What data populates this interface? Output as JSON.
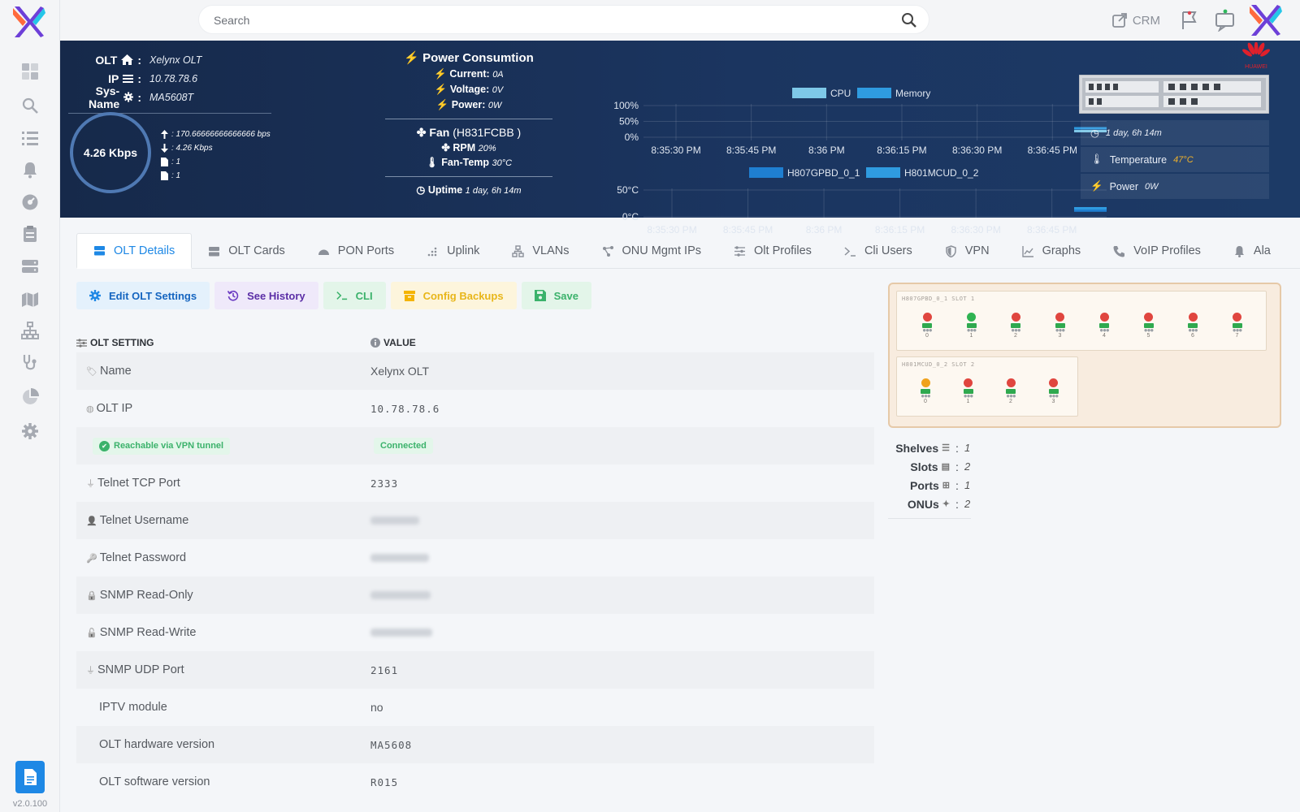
{
  "app": {
    "version": "v2.0.100"
  },
  "search": {
    "placeholder": "Search"
  },
  "topbar": {
    "crm_label": "CRM"
  },
  "olt": {
    "olt_label": "OLT",
    "olt_name": "Xelynx OLT",
    "ip_label": "IP",
    "ip": "10.78.78.6",
    "sysname_label": "Sys-Name",
    "sysname": "MA5608T",
    "gauge": "4.26 Kbps",
    "upload": ": 170.66666666666666 bps",
    "download": ": 4.26 Kbps",
    "file1": ": 1",
    "file2": ": 1"
  },
  "power": {
    "title": "Power Consumtion",
    "current_label": "Current:",
    "current": "0A",
    "voltage_label": "Voltage:",
    "voltage": "0V",
    "power_label": "Power:",
    "power": "0W",
    "fan_title": "Fan",
    "fan_model": "(H831FCBB )",
    "rpm_label": "RPM",
    "rpm": "20%",
    "fantemp_label": "Fan-Temp",
    "fantemp": "30°C",
    "uptime_label": "Uptime",
    "uptime": "1 day, 6h 14m"
  },
  "device": {
    "brand": "HUAWEI",
    "uptime": "1 day, 6h 14m",
    "temp_label": "Temperature",
    "temp": "47°C",
    "power_label": "Power",
    "power": "0W"
  },
  "chart_data": [
    {
      "type": "area",
      "series": [
        {
          "name": "CPU",
          "color": "#7ec8e8",
          "values": [
            0,
            0,
            0,
            0,
            0,
            0,
            0,
            0,
            0,
            0,
            0,
            0,
            0,
            0,
            0,
            0,
            0,
            0,
            0,
            0.1
          ]
        },
        {
          "name": "Memory",
          "color": "#2f9be0",
          "values": [
            0,
            0,
            0,
            0,
            0,
            0,
            0,
            0,
            0,
            0,
            0,
            0,
            0,
            0,
            0,
            0,
            0,
            0,
            0,
            0.15
          ]
        }
      ],
      "x_ticks": [
        "8:35:30 PM",
        "8:35:45 PM",
        "8:36 PM",
        "8:36:15 PM",
        "8:36:30 PM",
        "8:36:45 PM"
      ],
      "y_ticks": [
        "100%",
        "50%",
        "0%"
      ],
      "ylim": [
        0,
        100
      ]
    },
    {
      "type": "area",
      "series": [
        {
          "name": "H807GPBD_0_1",
          "color": "#1f7fd1",
          "values": [
            0,
            0,
            0,
            0,
            0,
            0,
            0,
            0,
            0,
            0,
            0,
            0,
            0,
            0,
            0,
            0,
            0,
            0,
            0,
            0.12
          ]
        },
        {
          "name": "H801MCUD_0_2",
          "color": "#2f9be0",
          "values": [
            0,
            0,
            0,
            0,
            0,
            0,
            0,
            0,
            0,
            0,
            0,
            0,
            0,
            0,
            0,
            0,
            0,
            0,
            0,
            0.1
          ]
        }
      ],
      "x_ticks": [
        "8:35:30 PM",
        "8:35:45 PM",
        "8:36 PM",
        "8:36:15 PM",
        "8:36:30 PM",
        "8:36:45 PM"
      ],
      "y_ticks": [
        "50°C",
        "0°C"
      ],
      "ylim": [
        0,
        50
      ]
    }
  ],
  "tabs": [
    {
      "label": "OLT Details",
      "icon": "server-icon",
      "active": true
    },
    {
      "label": "OLT Cards",
      "icon": "cards-icon"
    },
    {
      "label": "PON Ports",
      "icon": "pon-icon"
    },
    {
      "label": "Uplink",
      "icon": "uplink-icon"
    },
    {
      "label": "VLANs",
      "icon": "vlan-icon"
    },
    {
      "label": "ONU Mgmt IPs",
      "icon": "network-icon"
    },
    {
      "label": "Olt Profiles",
      "icon": "sliders-icon"
    },
    {
      "label": "Cli Users",
      "icon": "terminal-icon"
    },
    {
      "label": "VPN",
      "icon": "shield-icon"
    },
    {
      "label": "Graphs",
      "icon": "graph-icon"
    },
    {
      "label": "VoIP Profiles",
      "icon": "phone-icon"
    },
    {
      "label": "Ala",
      "icon": "bell-icon"
    }
  ],
  "actions": {
    "edit": "Edit OLT Settings",
    "history": "See History",
    "cli": "CLI",
    "backups": "Config Backups",
    "save": "Save"
  },
  "settings": {
    "col_setting": "OLT SETTING",
    "col_value": "VALUE",
    "rows": [
      {
        "label": "Name",
        "value": "Xelynx OLT"
      },
      {
        "label": "OLT IP",
        "value": "10.78.78.6"
      },
      {
        "label": "Reachable via VPN tunnel",
        "value": "Connected"
      },
      {
        "label": "Telnet TCP Port",
        "value": "2333"
      },
      {
        "label": "Telnet Username",
        "value": ""
      },
      {
        "label": "Telnet Password",
        "value": ""
      },
      {
        "label": "SNMP Read-Only",
        "value": ""
      },
      {
        "label": "SNMP Read-Write",
        "value": ""
      },
      {
        "label": "SNMP UDP Port",
        "value": "2161"
      },
      {
        "label": "IPTV module",
        "value": "no"
      },
      {
        "label": "OLT hardware version",
        "value": "MA5608"
      },
      {
        "label": "OLT software version",
        "value": "R015"
      }
    ]
  },
  "chassis": {
    "slot1": {
      "label": "H807GPBD_0_1 SLOT 1",
      "ports": [
        {
          "n": "0",
          "status": "red"
        },
        {
          "n": "1",
          "status": "green"
        },
        {
          "n": "2",
          "status": "red"
        },
        {
          "n": "3",
          "status": "red"
        },
        {
          "n": "4",
          "status": "red"
        },
        {
          "n": "5",
          "status": "red"
        },
        {
          "n": "6",
          "status": "red"
        },
        {
          "n": "7",
          "status": "red"
        }
      ]
    },
    "slot2": {
      "label": "H801MCUD_0_2 SLOT 2",
      "ports": [
        {
          "n": "0",
          "status": "orange"
        },
        {
          "n": "1",
          "status": "red"
        },
        {
          "n": "2",
          "status": "red"
        },
        {
          "n": "3",
          "status": "red"
        }
      ]
    }
  },
  "counts": {
    "shelves_label": "Shelves",
    "shelves": "1",
    "slots_label": "Slots",
    "slots": "2",
    "ports_label": "Ports",
    "ports": "1",
    "onus_label": "ONUs",
    "onus": "2"
  }
}
